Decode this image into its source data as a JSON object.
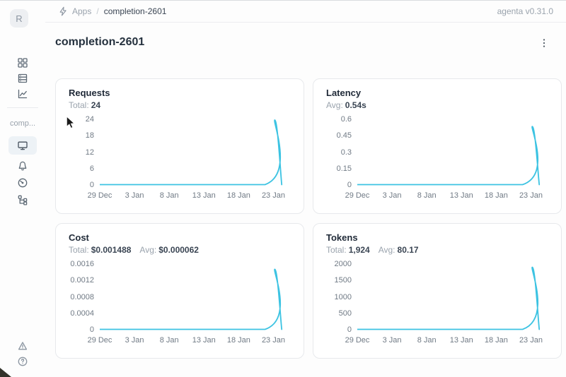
{
  "accent": {
    "line_color": "#3cc3e2"
  },
  "topbar": {
    "breadcrumb": {
      "icon": "lightning-logo-icon",
      "section": "Apps",
      "separator": "/",
      "current": "completion-2601"
    },
    "version": "agenta v0.31.0"
  },
  "sidebar": {
    "avatar_letter": "R",
    "workspace_label": "comp...",
    "nav_top_icons": [
      "apps-grid-icon",
      "table-rows-icon",
      "line-chart-icon"
    ],
    "nav_app_icons": [
      "monitor-icon (selected)",
      "bell-icon",
      "gauge-icon",
      "tree-icon"
    ],
    "nav_bottom_icons": [
      "warning-triangle-icon",
      "question-circle-icon"
    ]
  },
  "page": {
    "title": "completion-2601"
  },
  "chart_data": [
    {
      "type": "area",
      "title": "Requests",
      "stats": [
        {
          "label": "Total:",
          "value": "24"
        }
      ],
      "y_ticks": [
        "24",
        "18",
        "12",
        "6",
        "0"
      ],
      "y_max": 24,
      "x_domain": [
        0,
        27.5
      ],
      "x_ticks": [
        {
          "label": "29 Dec",
          "x": 0
        },
        {
          "label": "3 Jan",
          "x": 5
        },
        {
          "label": "8 Jan",
          "x": 10
        },
        {
          "label": "13 Jan",
          "x": 15
        },
        {
          "label": "18 Jan",
          "x": 20
        },
        {
          "label": "23 Jan",
          "x": 25
        }
      ],
      "points": [
        {
          "x": 0,
          "y": 0
        },
        {
          "x": 23.8,
          "y": 0
        },
        {
          "x": 25.2,
          "y": 24
        },
        {
          "x": 26.2,
          "y": 0
        }
      ],
      "peak_value": 24,
      "grid": false,
      "legend": false
    },
    {
      "type": "area",
      "title": "Latency",
      "stats": [
        {
          "label": "Avg:",
          "value": "0.54s"
        }
      ],
      "y_ticks": [
        "0.6",
        "0.45",
        "0.3",
        "0.15",
        "0"
      ],
      "y_max": 0.6,
      "x_domain": [
        0,
        27.5
      ],
      "x_ticks": [
        {
          "label": "29 Dec",
          "x": 0
        },
        {
          "label": "3 Jan",
          "x": 5
        },
        {
          "label": "8 Jan",
          "x": 10
        },
        {
          "label": "13 Jan",
          "x": 15
        },
        {
          "label": "18 Jan",
          "x": 20
        },
        {
          "label": "23 Jan",
          "x": 25
        }
      ],
      "points": [
        {
          "x": 0,
          "y": 0
        },
        {
          "x": 23.8,
          "y": 0
        },
        {
          "x": 25.2,
          "y": 0.54
        },
        {
          "x": 26.2,
          "y": 0
        }
      ],
      "peak_value": 0.54,
      "grid": false,
      "legend": false
    },
    {
      "type": "area",
      "title": "Cost",
      "stats": [
        {
          "label": "Total:",
          "value": "$0.001488"
        },
        {
          "label": "Avg:",
          "value": "$0.000062"
        }
      ],
      "y_ticks": [
        "0.0016",
        "0.0012",
        "0.0008",
        "0.0004",
        "0"
      ],
      "y_max": 0.0016,
      "x_domain": [
        0,
        27.5
      ],
      "x_ticks": [
        {
          "label": "29 Dec",
          "x": 0
        },
        {
          "label": "3 Jan",
          "x": 5
        },
        {
          "label": "8 Jan",
          "x": 10
        },
        {
          "label": "13 Jan",
          "x": 15
        },
        {
          "label": "18 Jan",
          "x": 20
        },
        {
          "label": "23 Jan",
          "x": 25
        }
      ],
      "points": [
        {
          "x": 0,
          "y": 0
        },
        {
          "x": 23.8,
          "y": 0
        },
        {
          "x": 25.2,
          "y": 0.001488
        },
        {
          "x": 26.2,
          "y": 0
        }
      ],
      "peak_value": 0.001488,
      "grid": false,
      "legend": false
    },
    {
      "type": "area",
      "title": "Tokens",
      "stats": [
        {
          "label": "Total:",
          "value": "1,924"
        },
        {
          "label": "Avg:",
          "value": "80.17"
        }
      ],
      "y_ticks": [
        "2000",
        "1500",
        "1000",
        "500",
        "0"
      ],
      "y_max": 2000,
      "x_domain": [
        0,
        27.5
      ],
      "x_ticks": [
        {
          "label": "29 Dec",
          "x": 0
        },
        {
          "label": "3 Jan",
          "x": 5
        },
        {
          "label": "8 Jan",
          "x": 10
        },
        {
          "label": "13 Jan",
          "x": 15
        },
        {
          "label": "18 Jan",
          "x": 20
        },
        {
          "label": "23 Jan",
          "x": 25
        }
      ],
      "points": [
        {
          "x": 0,
          "y": 0
        },
        {
          "x": 23.8,
          "y": 0
        },
        {
          "x": 25.2,
          "y": 1924
        },
        {
          "x": 26.2,
          "y": 0
        }
      ],
      "peak_value": 1924,
      "grid": false,
      "legend": false
    }
  ]
}
